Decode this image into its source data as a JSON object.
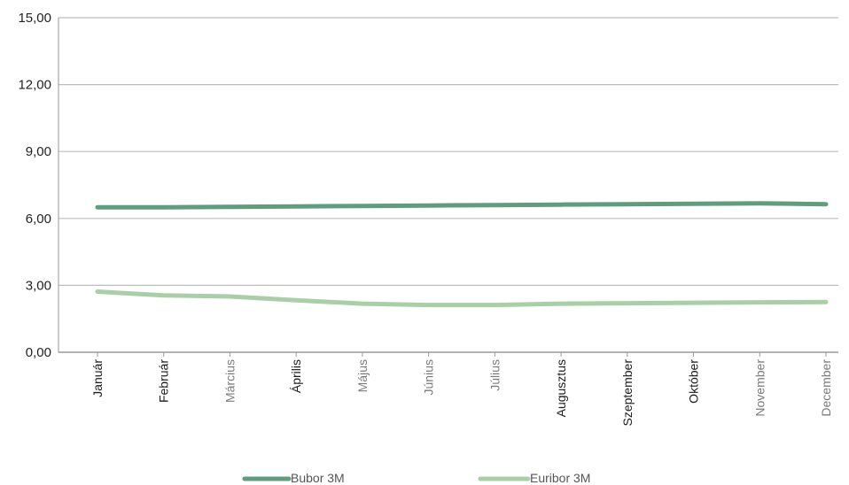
{
  "chart_data": {
    "type": "line",
    "title": "",
    "xlabel": "",
    "ylabel": "",
    "categories": [
      "Január",
      "Február",
      "Március",
      "Április",
      "Május",
      "Június",
      "Július",
      "Augusztus",
      "Szeptember",
      "Október",
      "November",
      "December"
    ],
    "series": [
      {
        "name": "Bubor 3M",
        "color": "#5e9e7e",
        "values": [
          6.5,
          6.5,
          6.52,
          6.54,
          6.56,
          6.58,
          6.6,
          6.62,
          6.64,
          6.66,
          6.68,
          6.64
        ]
      },
      {
        "name": "Euribor 3M",
        "color": "#a9cfa6",
        "values": [
          2.72,
          2.55,
          2.5,
          2.33,
          2.18,
          2.12,
          2.12,
          2.18,
          2.2,
          2.22,
          2.24,
          2.25
        ]
      }
    ],
    "ylim": [
      0,
      15
    ],
    "yticks": [
      "0,00",
      "3,00",
      "6,00",
      "9,00",
      "12,00",
      "15,00"
    ],
    "ytick_values": [
      0,
      3,
      6,
      9,
      12,
      15
    ],
    "grid": true,
    "legend_position": "bottom",
    "light_tick_indices": [
      2,
      4,
      5,
      6,
      10,
      11
    ]
  }
}
